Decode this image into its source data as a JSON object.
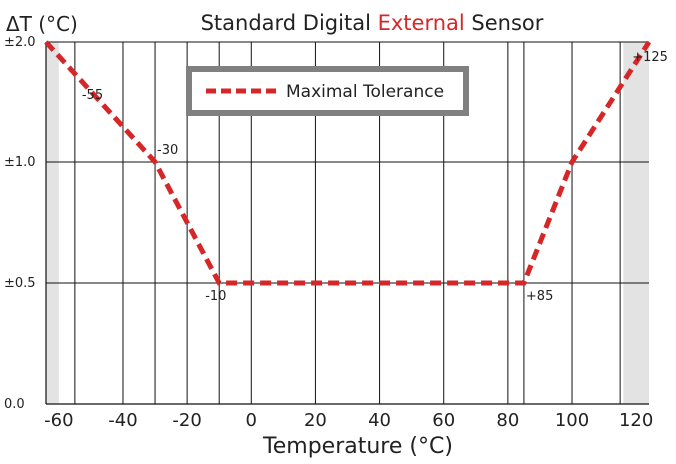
{
  "chart_data": {
    "type": "line",
    "title_parts": [
      {
        "text": "Standard Digital ",
        "color": "#222222"
      },
      {
        "text": "External",
        "color": "#d62728"
      },
      {
        "text": " Sensor",
        "color": "#222222"
      }
    ],
    "ylabel": "ΔT (°C)",
    "xlabel": "Temperature (°C)",
    "xlim": [
      -64,
      124
    ],
    "x_ticks": [
      -60,
      -40,
      -20,
      0,
      20,
      40,
      60,
      80,
      100,
      120
    ],
    "x_tick_labels": [
      "-60",
      "-40",
      "-20",
      "0",
      "20",
      "40",
      "60",
      "80",
      "100",
      "120"
    ],
    "y_levels": [
      0.0,
      0.5,
      1.0,
      2.0
    ],
    "y_tick_labels": [
      "0.0",
      "±0.5",
      "±1.0",
      "±2.0"
    ],
    "v_gridlines": [
      -55,
      -40,
      -30,
      -20,
      -10,
      0,
      20,
      40,
      60,
      80,
      85,
      100,
      115
    ],
    "shaded_ranges": [
      [
        -64,
        -60
      ],
      [
        116,
        124
      ]
    ],
    "series": [
      {
        "name": "Maximal Tolerance",
        "color": "#d62728",
        "style": "dashed",
        "x": [
          -64,
          -30,
          -10,
          85,
          100,
          124
        ],
        "y": [
          2.0,
          1.0,
          0.5,
          0.5,
          1.0,
          2.0
        ]
      }
    ],
    "annotations": [
      {
        "text": "-55",
        "x": -55,
        "y": 2.0
      },
      {
        "text": "-30",
        "x": -30,
        "y": 1.0
      },
      {
        "text": "-10",
        "x": -10,
        "y": 0.5
      },
      {
        "text": "+85",
        "x": 85,
        "y": 0.5
      },
      {
        "text": "+125",
        "x": 125,
        "y": 2.0
      }
    ],
    "legend": {
      "position": "top-center",
      "entry": "Maximal Tolerance"
    },
    "grid": true
  }
}
